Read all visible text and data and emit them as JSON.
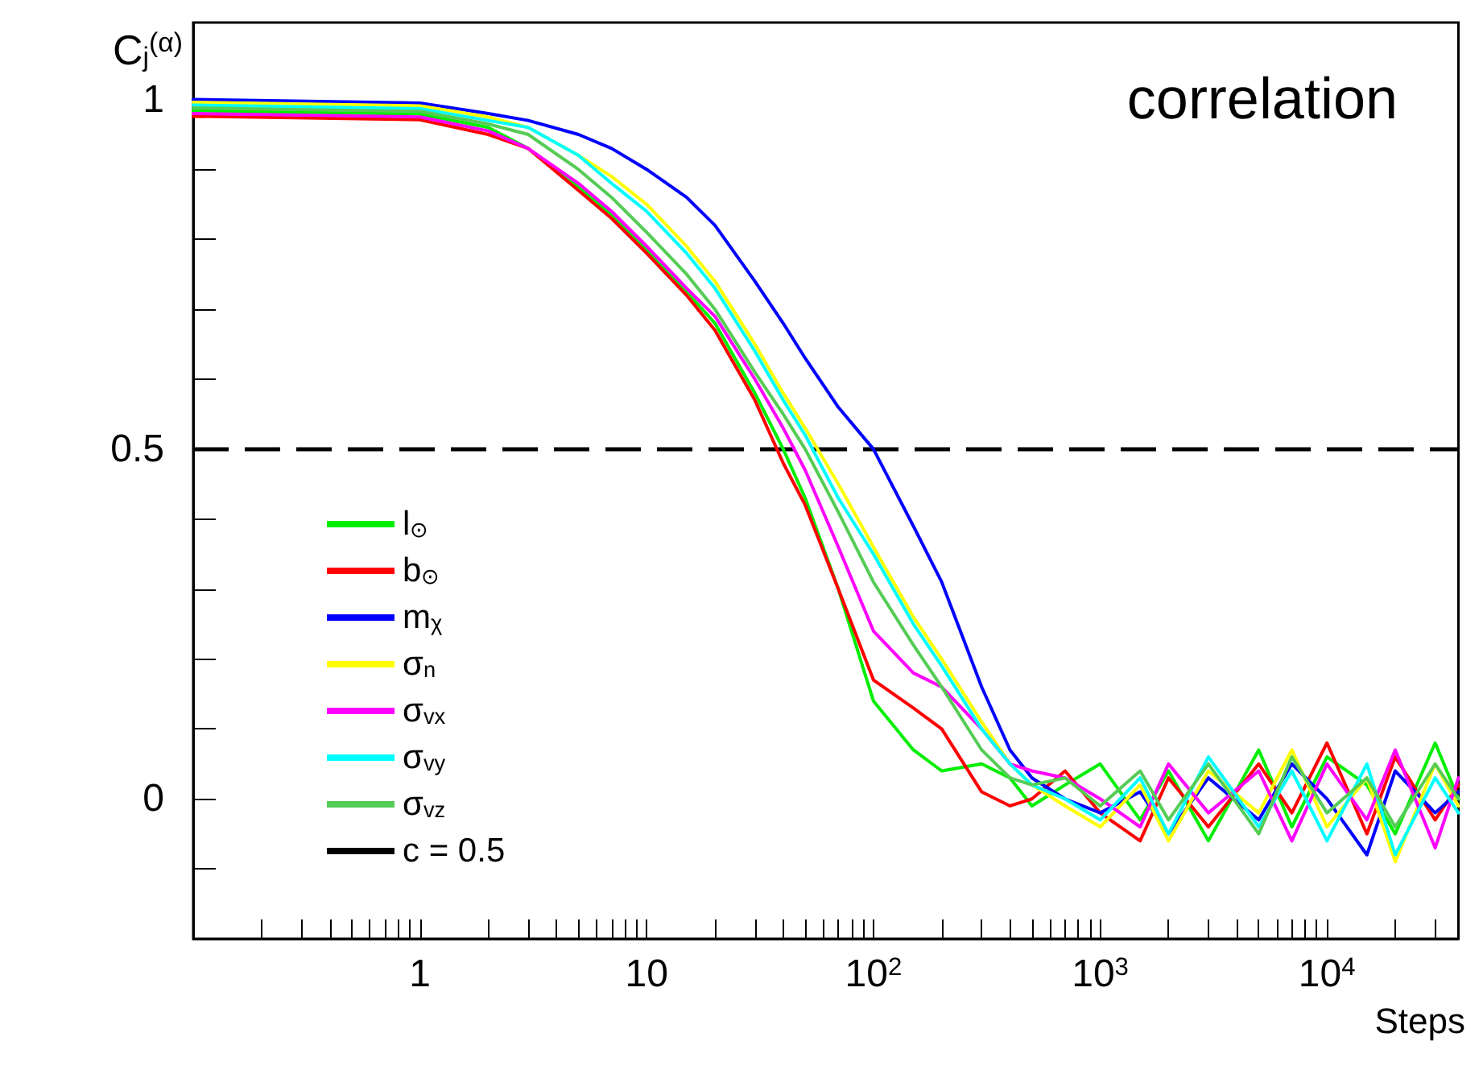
{
  "chart_data": {
    "type": "line",
    "title": "correlation",
    "xlabel": "Steps",
    "ylabel": "C$_{j}$$^{(α)}$",
    "log": "x",
    "grid": false,
    "legend": "bottom left",
    "marker": "none",
    "line_style": "solid",
    "xlim": [
      0.1,
      38000
    ],
    "xticks": [
      {
        "value": 0.2,
        "label": null
      },
      {
        "value": 0.3,
        "label": null
      },
      {
        "value": 0.4,
        "label": null
      },
      {
        "value": 0.5,
        "label": null
      },
      {
        "value": 0.6,
        "label": null
      },
      {
        "value": 0.7,
        "label": null
      },
      {
        "value": 0.8,
        "label": null
      },
      {
        "value": 0.9,
        "label": null
      },
      1,
      {
        "value": 2,
        "label": null
      },
      {
        "value": 3,
        "label": null
      },
      {
        "value": 4,
        "label": null
      },
      {
        "value": 5,
        "label": null
      },
      {
        "value": 6,
        "label": null
      },
      {
        "value": 7,
        "label": null
      },
      {
        "value": 8,
        "label": null
      },
      {
        "value": 9,
        "label": null
      },
      10,
      {
        "value": 20,
        "label": null
      },
      {
        "value": 30,
        "label": null
      },
      {
        "value": 40,
        "label": null
      },
      {
        "value": 50,
        "label": null
      },
      {
        "value": 60,
        "label": null
      },
      {
        "value": 70,
        "label": null
      },
      {
        "value": 80,
        "label": null
      },
      {
        "value": 90,
        "label": null
      },
      {
        "value": 100,
        "label": "10$^{2}$"
      },
      {
        "value": 200,
        "label": null
      },
      {
        "value": 300,
        "label": null
      },
      {
        "value": 400,
        "label": null
      },
      {
        "value": 500,
        "label": null
      },
      {
        "value": 600,
        "label": null
      },
      {
        "value": 700,
        "label": null
      },
      {
        "value": 800,
        "label": null
      },
      {
        "value": 900,
        "label": null
      },
      {
        "value": 1000,
        "label": "10$^{3}$"
      },
      {
        "value": 2000,
        "label": null
      },
      {
        "value": 3000,
        "label": null
      },
      {
        "value": 4000,
        "label": null
      },
      {
        "value": 5000,
        "label": null
      },
      {
        "value": 6000,
        "label": null
      },
      {
        "value": 7000,
        "label": null
      },
      {
        "value": 8000,
        "label": null
      },
      {
        "value": 9000,
        "label": null
      },
      {
        "value": 10000,
        "label": "10$^{4}$"
      },
      {
        "value": 20000,
        "label": null
      },
      {
        "value": 30000,
        "label": null
      }
    ],
    "ylim": [
      -0.2,
      1.11
    ],
    "yticks": [
      {
        "value": -0.1,
        "label": null
      },
      0,
      {
        "value": 0.1,
        "label": null
      },
      {
        "value": 0.2,
        "label": null
      },
      {
        "value": 0.3,
        "label": null
      },
      {
        "value": 0.4,
        "label": null
      },
      0.5,
      {
        "value": 0.6,
        "label": null
      },
      {
        "value": 0.7,
        "label": null
      },
      {
        "value": 0.8,
        "label": null
      },
      {
        "value": 0.9,
        "label": null
      },
      1
    ],
    "x": [
      0.1,
      1,
      2,
      3,
      5,
      7,
      10,
      15,
      20,
      30,
      40,
      50,
      70,
      100,
      150,
      200,
      300,
      400,
      500,
      700,
      1000,
      1500,
      2000,
      3000,
      5000,
      7000,
      10000,
      15000,
      20000,
      30000,
      38000
    ],
    "series": [
      {
        "name": "l$_{⊙}$",
        "color": "#00ee00",
        "values": [
          0.984,
          0.979,
          0.96,
          0.93,
          0.875,
          0.835,
          0.785,
          0.725,
          0.68,
          0.58,
          0.5,
          0.43,
          0.3,
          0.14,
          0.07,
          0.04,
          0.05,
          0.03,
          -0.01,
          0.02,
          0.05,
          -0.03,
          0.04,
          -0.06,
          0.07,
          -0.04,
          0.06,
          0.02,
          -0.05,
          0.08,
          0
        ]
      },
      {
        "name": "b$_{⊙}$",
        "color": "#ff0000",
        "values": [
          0.976,
          0.971,
          0.95,
          0.93,
          0.87,
          0.83,
          0.78,
          0.72,
          0.67,
          0.57,
          0.48,
          0.42,
          0.3,
          0.17,
          0.13,
          0.1,
          0.01,
          -0.01,
          0,
          0.04,
          -0.02,
          -0.06,
          0.03,
          -0.04,
          0.05,
          -0.02,
          0.08,
          -0.05,
          0.06,
          -0.03,
          0.02
        ]
      },
      {
        "name": "m$_{χ}$",
        "color": "#0000ff",
        "values": [
          1,
          0.995,
          0.98,
          0.97,
          0.95,
          0.93,
          0.9,
          0.86,
          0.82,
          0.74,
          0.68,
          0.63,
          0.56,
          0.5,
          0.39,
          0.31,
          0.16,
          0.07,
          0.03,
          0,
          -0.02,
          0.01,
          -0.05,
          0.03,
          -0.03,
          0.05,
          0,
          -0.08,
          0.04,
          -0.02,
          0.01
        ]
      },
      {
        "name": "σ$_{n}$",
        "color": "#ffff00",
        "values": [
          0.996,
          0.991,
          0.975,
          0.96,
          0.92,
          0.89,
          0.85,
          0.79,
          0.74,
          0.65,
          0.58,
          0.53,
          0.45,
          0.36,
          0.26,
          0.2,
          0.11,
          0.05,
          0.02,
          -0.01,
          -0.04,
          0.02,
          -0.06,
          0.04,
          -0.02,
          0.07,
          -0.04,
          0.03,
          -0.09,
          0.05,
          -0.01
        ]
      },
      {
        "name": "σ$_{vx}$",
        "color": "#ff00ff",
        "values": [
          0.98,
          0.975,
          0.955,
          0.93,
          0.88,
          0.84,
          0.79,
          0.73,
          0.69,
          0.6,
          0.53,
          0.47,
          0.36,
          0.24,
          0.18,
          0.16,
          0.1,
          0.05,
          0.04,
          0.03,
          0,
          -0.04,
          0.05,
          -0.02,
          0.04,
          -0.06,
          0.05,
          -0.03,
          0.07,
          -0.07,
          0.03
        ]
      },
      {
        "name": "σ$_{vy}$",
        "color": "#00ffff",
        "values": [
          0.992,
          0.987,
          0.97,
          0.96,
          0.92,
          0.88,
          0.84,
          0.78,
          0.73,
          0.64,
          0.57,
          0.52,
          0.43,
          0.35,
          0.25,
          0.19,
          0.1,
          0.05,
          0.02,
          0,
          -0.03,
          0.03,
          -0.05,
          0.06,
          -0.04,
          0.04,
          -0.06,
          0.05,
          -0.08,
          0.03,
          -0.02
        ]
      },
      {
        "name": "σ$_{vz}$",
        "color": "#55cc55",
        "values": [
          0.988,
          0.983,
          0.965,
          0.95,
          0.9,
          0.86,
          0.81,
          0.75,
          0.7,
          0.61,
          0.55,
          0.5,
          0.41,
          0.31,
          0.22,
          0.16,
          0.07,
          0.03,
          0.02,
          0.03,
          -0.01,
          0.04,
          -0.03,
          0.05,
          -0.05,
          0.06,
          -0.02,
          0.03,
          -0.04,
          0.05,
          0
        ]
      }
    ],
    "ref_lines": [
      {
        "axis": "y",
        "value": 0.5,
        "label": "c = 0.5",
        "color": "#000000",
        "line_style": "dashed"
      }
    ]
  }
}
